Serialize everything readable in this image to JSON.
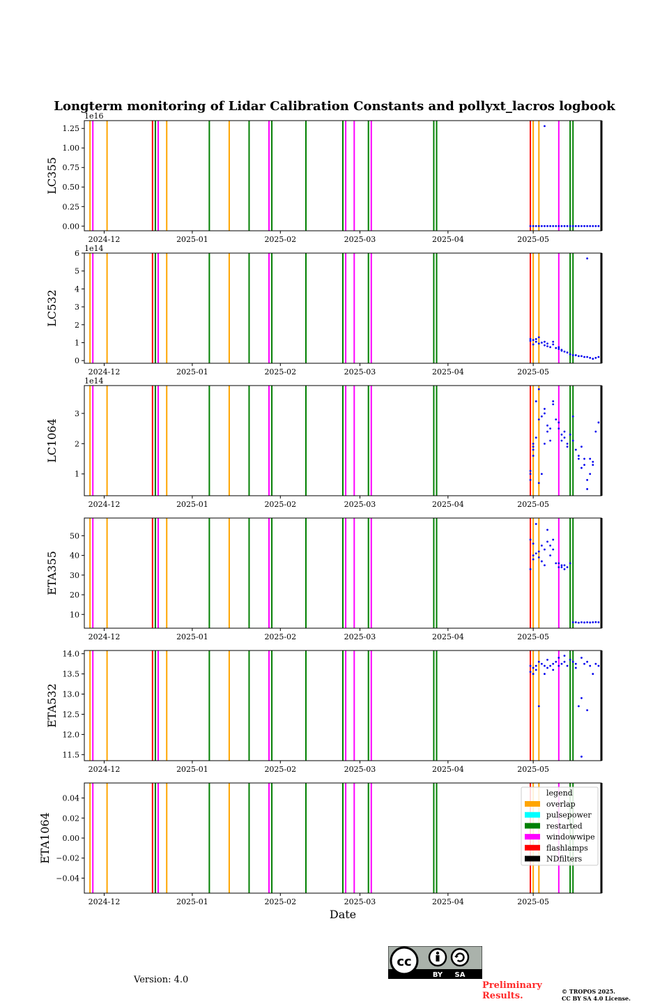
{
  "figure": {
    "version_text": "Version: 4.0",
    "preliminary_text": [
      "Preliminary",
      "Results."
    ],
    "copyright_text": [
      "© TROPOS 2025.",
      "CC BY SA 4.0 License."
    ],
    "license_badge": {
      "icon": "cc-by-sa-icon",
      "labels": [
        "BY",
        "SA"
      ]
    }
  },
  "chart_data": {
    "type": "scatter",
    "title": "Longterm monitoring of Lidar Calibration Constants and pollyxt_lacros logbook",
    "xlabel": "Date",
    "xlim": [
      "2024-11-24",
      "2025-05-25"
    ],
    "x_tick_labels": [
      {
        "date": "2024-12-01",
        "label": "2024-12"
      },
      {
        "date": "2025-01-01",
        "label": "2025-01"
      },
      {
        "date": "2025-02-01",
        "label": "2025-02"
      },
      {
        "date": "2025-03-01",
        "label": "2025-03"
      },
      {
        "date": "2025-04-01",
        "label": "2025-04"
      },
      {
        "date": "2025-05-01",
        "label": "2025-05"
      }
    ],
    "point_color": "#0000ee",
    "logbook_events": [
      {
        "date": "2024-11-26",
        "type": "overlap"
      },
      {
        "date": "2024-11-27",
        "type": "windowwipe"
      },
      {
        "date": "2024-12-02",
        "type": "overlap"
      },
      {
        "date": "2024-12-18",
        "type": "flashlamps"
      },
      {
        "date": "2024-12-19",
        "type": "restarted"
      },
      {
        "date": "2024-12-20",
        "type": "windowwipe"
      },
      {
        "date": "2024-12-23",
        "type": "overlap"
      },
      {
        "date": "2025-01-07",
        "type": "restarted"
      },
      {
        "date": "2025-01-14",
        "type": "overlap"
      },
      {
        "date": "2025-01-21",
        "type": "restarted"
      },
      {
        "date": "2025-01-28",
        "type": "windowwipe"
      },
      {
        "date": "2025-01-29",
        "type": "restarted"
      },
      {
        "date": "2025-02-10",
        "type": "restarted"
      },
      {
        "date": "2025-02-23",
        "type": "restarted"
      },
      {
        "date": "2025-02-24",
        "type": "windowwipe"
      },
      {
        "date": "2025-02-27",
        "type": "windowwipe"
      },
      {
        "date": "2025-03-04",
        "type": "restarted"
      },
      {
        "date": "2025-03-05",
        "type": "windowwipe"
      },
      {
        "date": "2025-03-27",
        "type": "restarted"
      },
      {
        "date": "2025-03-28",
        "type": "restarted"
      },
      {
        "date": "2025-04-30",
        "type": "flashlamps"
      },
      {
        "date": "2025-05-01",
        "type": "overlap"
      },
      {
        "date": "2025-05-03",
        "type": "overlap"
      },
      {
        "date": "2025-05-10",
        "type": "windowwipe"
      },
      {
        "date": "2025-05-14",
        "type": "restarted"
      },
      {
        "date": "2025-05-15",
        "type": "restarted"
      },
      {
        "date": "2025-05-25",
        "type": "NDfilters"
      }
    ],
    "legend": {
      "title": "legend",
      "location": "upper right",
      "entries": [
        {
          "label": "overlap",
          "color": "#ffa500"
        },
        {
          "label": "pulsepower",
          "color": "#00ffff"
        },
        {
          "label": "restarted",
          "color": "#008000"
        },
        {
          "label": "windowwipe",
          "color": "#ff00ff"
        },
        {
          "label": "flashlamps",
          "color": "#ff0000"
        },
        {
          "label": "NDfilters",
          "color": "#000000"
        }
      ]
    },
    "panels": [
      {
        "ylabel": "LC355",
        "ylim": [
          -0.06,
          1.35
        ],
        "yticks": [
          0.0,
          0.25,
          0.5,
          0.75,
          1.0,
          1.25
        ],
        "ytick_labels": [
          "0.00",
          "0.25",
          "0.50",
          "0.75",
          "1.00",
          "1.25"
        ],
        "exponent_label": "1e16",
        "points": [
          [
            "2025-04-30",
            0.0
          ],
          [
            "2025-05-01",
            0.0
          ],
          [
            "2025-05-02",
            0.0
          ],
          [
            "2025-05-03",
            0.0
          ],
          [
            "2025-05-04",
            0.0
          ],
          [
            "2025-05-05",
            0.0
          ],
          [
            "2025-05-05",
            1.28
          ],
          [
            "2025-05-06",
            0.0
          ],
          [
            "2025-05-07",
            0.0
          ],
          [
            "2025-05-08",
            0.0
          ],
          [
            "2025-05-09",
            0.0
          ],
          [
            "2025-05-10",
            0.0
          ],
          [
            "2025-05-11",
            0.0
          ],
          [
            "2025-05-12",
            0.0
          ],
          [
            "2025-05-13",
            0.0
          ],
          [
            "2025-05-14",
            0.0
          ],
          [
            "2025-05-15",
            0.0
          ],
          [
            "2025-05-16",
            0.0
          ],
          [
            "2025-05-17",
            0.0
          ],
          [
            "2025-05-18",
            0.0
          ],
          [
            "2025-05-19",
            0.0
          ],
          [
            "2025-05-20",
            0.0
          ],
          [
            "2025-05-21",
            0.0
          ],
          [
            "2025-05-22",
            0.0
          ],
          [
            "2025-05-23",
            0.0
          ],
          [
            "2025-05-24",
            0.0
          ]
        ]
      },
      {
        "ylabel": "LC532",
        "ylim": [
          -0.15,
          6.0
        ],
        "yticks": [
          0,
          1,
          2,
          3,
          4,
          5,
          6
        ],
        "ytick_labels": [
          "0",
          "1",
          "2",
          "3",
          "4",
          "5",
          "6"
        ],
        "exponent_label": "1e14",
        "points": [
          [
            "2025-04-30",
            1.1
          ],
          [
            "2025-04-30",
            1.2
          ],
          [
            "2025-05-01",
            0.9
          ],
          [
            "2025-05-01",
            1.15
          ],
          [
            "2025-05-02",
            1.05
          ],
          [
            "2025-05-02",
            1.2
          ],
          [
            "2025-05-03",
            0.95
          ],
          [
            "2025-05-03",
            1.3
          ],
          [
            "2025-05-04",
            1.0
          ],
          [
            "2025-05-05",
            0.85
          ],
          [
            "2025-05-05",
            1.05
          ],
          [
            "2025-05-06",
            0.8
          ],
          [
            "2025-05-06",
            0.95
          ],
          [
            "2025-05-07",
            0.75
          ],
          [
            "2025-05-08",
            0.9
          ],
          [
            "2025-05-08",
            1.05
          ],
          [
            "2025-05-09",
            0.7
          ],
          [
            "2025-05-10",
            0.75
          ],
          [
            "2025-05-10",
            0.65
          ],
          [
            "2025-05-11",
            0.6
          ],
          [
            "2025-05-11",
            0.55
          ],
          [
            "2025-05-12",
            0.5
          ],
          [
            "2025-05-13",
            0.45
          ],
          [
            "2025-05-14",
            0.35
          ],
          [
            "2025-05-15",
            0.3
          ],
          [
            "2025-05-16",
            0.3
          ],
          [
            "2025-05-17",
            0.25
          ],
          [
            "2025-05-18",
            0.25
          ],
          [
            "2025-05-19",
            0.2
          ],
          [
            "2025-05-20",
            5.7
          ],
          [
            "2025-05-20",
            0.2
          ],
          [
            "2025-05-21",
            0.15
          ],
          [
            "2025-05-22",
            0.1
          ],
          [
            "2025-05-23",
            0.15
          ],
          [
            "2025-05-24",
            0.2
          ]
        ]
      },
      {
        "ylabel": "LC1064",
        "ylim": [
          0.28,
          3.92
        ],
        "yticks": [
          1,
          2,
          3
        ],
        "ytick_labels": [
          "1",
          "2",
          "3"
        ],
        "exponent_label": "1e14",
        "points": [
          [
            "2025-04-30",
            0.8
          ],
          [
            "2025-04-30",
            1.0
          ],
          [
            "2025-04-30",
            1.1
          ],
          [
            "2025-05-01",
            1.6
          ],
          [
            "2025-05-01",
            1.8
          ],
          [
            "2025-05-01",
            1.9
          ],
          [
            "2025-05-01",
            2.0
          ],
          [
            "2025-05-02",
            2.2
          ],
          [
            "2025-05-02",
            3.4
          ],
          [
            "2025-05-03",
            0.7
          ],
          [
            "2025-05-03",
            2.8
          ],
          [
            "2025-05-03",
            3.8
          ],
          [
            "2025-05-04",
            1.0
          ],
          [
            "2025-05-04",
            2.9
          ],
          [
            "2025-05-05",
            3.0
          ],
          [
            "2025-05-05",
            3.15
          ],
          [
            "2025-05-05",
            2.0
          ],
          [
            "2025-05-06",
            2.4
          ],
          [
            "2025-05-06",
            2.6
          ],
          [
            "2025-05-07",
            2.1
          ],
          [
            "2025-05-07",
            2.5
          ],
          [
            "2025-05-08",
            3.3
          ],
          [
            "2025-05-08",
            3.4
          ],
          [
            "2025-05-09",
            2.8
          ],
          [
            "2025-05-10",
            2.5
          ],
          [
            "2025-05-10",
            2.7
          ],
          [
            "2025-05-11",
            2.3
          ],
          [
            "2025-05-11",
            2.1
          ],
          [
            "2025-05-12",
            2.4
          ],
          [
            "2025-05-12",
            2.2
          ],
          [
            "2025-05-13",
            2.0
          ],
          [
            "2025-05-13",
            1.9
          ],
          [
            "2025-05-14",
            2.3
          ],
          [
            "2025-05-15",
            2.9
          ],
          [
            "2025-05-15",
            2.1
          ],
          [
            "2025-05-16",
            1.8
          ],
          [
            "2025-05-17",
            1.5
          ],
          [
            "2025-05-17",
            1.6
          ],
          [
            "2025-05-18",
            1.9
          ],
          [
            "2025-05-18",
            1.2
          ],
          [
            "2025-05-19",
            1.5
          ],
          [
            "2025-05-19",
            1.3
          ],
          [
            "2025-05-20",
            0.5
          ],
          [
            "2025-05-20",
            0.8
          ],
          [
            "2025-05-21",
            1.0
          ],
          [
            "2025-05-21",
            1.5
          ],
          [
            "2025-05-22",
            1.3
          ],
          [
            "2025-05-22",
            1.4
          ],
          [
            "2025-05-23",
            2.4
          ],
          [
            "2025-05-24",
            2.7
          ]
        ]
      },
      {
        "ylabel": "ETA355",
        "ylim": [
          3.0,
          59.0
        ],
        "yticks": [
          10,
          20,
          30,
          40,
          50
        ],
        "ytick_labels": [
          "10",
          "20",
          "30",
          "40",
          "50"
        ],
        "exponent_label": "",
        "points": [
          [
            "2025-04-30",
            33.0
          ],
          [
            "2025-04-30",
            48.0
          ],
          [
            "2025-05-01",
            38.0
          ],
          [
            "2025-05-01",
            46.0
          ],
          [
            "2025-05-01",
            40.0
          ],
          [
            "2025-05-02",
            41.0
          ],
          [
            "2025-05-02",
            56.0
          ],
          [
            "2025-05-03",
            39.0
          ],
          [
            "2025-05-03",
            42.0
          ],
          [
            "2025-05-04",
            37.0
          ],
          [
            "2025-05-04",
            45.0
          ],
          [
            "2025-05-05",
            35.0
          ],
          [
            "2025-05-05",
            43.0
          ],
          [
            "2025-05-06",
            53.0
          ],
          [
            "2025-05-06",
            47.0
          ],
          [
            "2025-05-07",
            45.0
          ],
          [
            "2025-05-07",
            40.0
          ],
          [
            "2025-05-08",
            48.0
          ],
          [
            "2025-05-08",
            43.0
          ],
          [
            "2025-05-09",
            36.0
          ],
          [
            "2025-05-10",
            34.0
          ],
          [
            "2025-05-10",
            36.0
          ],
          [
            "2025-05-11",
            35.0
          ],
          [
            "2025-05-11",
            34.0
          ],
          [
            "2025-05-12",
            33.0
          ],
          [
            "2025-05-12",
            35.0
          ],
          [
            "2025-05-13",
            34.0
          ],
          [
            "2025-05-14",
            36.0
          ],
          [
            "2025-05-15",
            6.0
          ],
          [
            "2025-05-16",
            6.0
          ],
          [
            "2025-05-17",
            5.8
          ],
          [
            "2025-05-18",
            6.0
          ],
          [
            "2025-05-19",
            5.9
          ],
          [
            "2025-05-20",
            6.0
          ],
          [
            "2025-05-21",
            5.9
          ],
          [
            "2025-05-22",
            6.0
          ],
          [
            "2025-05-23",
            6.1
          ],
          [
            "2025-05-24",
            6.0
          ]
        ]
      },
      {
        "ylabel": "ETA532",
        "ylim": [
          11.35,
          14.08
        ],
        "yticks": [
          11.5,
          12.0,
          12.5,
          13.0,
          13.5,
          14.0
        ],
        "ytick_labels": [
          "11.5",
          "12.0",
          "12.5",
          "13.0",
          "13.5",
          "14.0"
        ],
        "exponent_label": "",
        "points": [
          [
            "2025-04-30",
            13.55
          ],
          [
            "2025-04-30",
            13.7
          ],
          [
            "2025-05-01",
            13.5
          ],
          [
            "2025-05-01",
            13.65
          ],
          [
            "2025-05-02",
            13.6
          ],
          [
            "2025-05-02",
            13.7
          ],
          [
            "2025-05-03",
            13.8
          ],
          [
            "2025-05-03",
            12.7
          ],
          [
            "2025-05-04",
            13.75
          ],
          [
            "2025-05-05",
            13.7
          ],
          [
            "2025-05-05",
            13.5
          ],
          [
            "2025-05-06",
            13.85
          ],
          [
            "2025-05-06",
            13.65
          ],
          [
            "2025-05-07",
            13.7
          ],
          [
            "2025-05-08",
            13.6
          ],
          [
            "2025-05-08",
            13.75
          ],
          [
            "2025-05-09",
            13.8
          ],
          [
            "2025-05-10",
            13.7
          ],
          [
            "2025-05-10",
            13.9
          ],
          [
            "2025-05-11",
            13.75
          ],
          [
            "2025-05-12",
            13.8
          ],
          [
            "2025-05-12",
            13.95
          ],
          [
            "2025-05-13",
            13.7
          ],
          [
            "2025-05-14",
            13.85
          ],
          [
            "2025-05-15",
            13.8
          ],
          [
            "2025-05-16",
            13.65
          ],
          [
            "2025-05-16",
            13.75
          ],
          [
            "2025-05-17",
            12.7
          ],
          [
            "2025-05-18",
            13.9
          ],
          [
            "2025-05-18",
            12.9
          ],
          [
            "2025-05-18",
            11.45
          ],
          [
            "2025-05-19",
            13.75
          ],
          [
            "2025-05-20",
            12.6
          ],
          [
            "2025-05-20",
            13.8
          ],
          [
            "2025-05-21",
            13.7
          ],
          [
            "2025-05-22",
            13.5
          ],
          [
            "2025-05-23",
            13.75
          ],
          [
            "2025-05-24",
            13.7
          ]
        ]
      },
      {
        "ylabel": "ETA1064",
        "ylim": [
          -0.055,
          0.055
        ],
        "yticks": [
          -0.04,
          -0.02,
          0.0,
          0.02,
          0.04
        ],
        "ytick_labels": [
          "−0.04",
          "−0.02",
          "0.00",
          "0.02",
          "0.04"
        ],
        "exponent_label": "",
        "points": []
      }
    ]
  }
}
